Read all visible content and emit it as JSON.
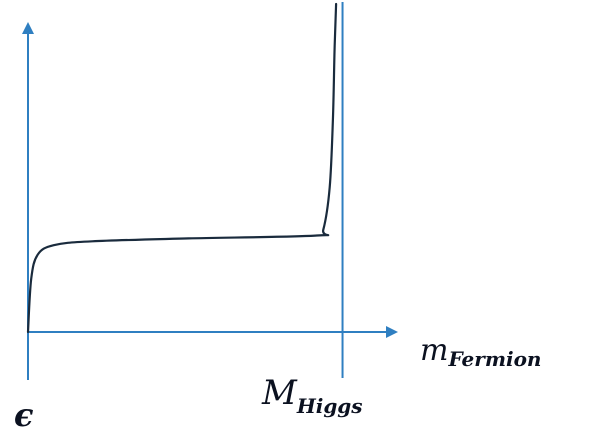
{
  "chart_data": {
    "type": "line",
    "title": "",
    "ylabel": "",
    "xlabel": {
      "main": "m",
      "sub": "Fermion"
    },
    "origin_label": "ϵ",
    "marker_label": {
      "main": "M",
      "sub": "Higgs"
    },
    "series": [
      {
        "values": [
          [
            0.0,
            0.0
          ],
          [
            0.1,
            0.55
          ],
          [
            0.3,
            0.8
          ],
          [
            0.8,
            0.9
          ],
          [
            2.0,
            0.94
          ],
          [
            5.0,
            0.97
          ],
          [
            9.0,
            1.0
          ],
          [
            9.2,
            1.06
          ],
          [
            9.4,
            1.5
          ],
          [
            9.5,
            2.2
          ],
          [
            9.55,
            2.9
          ],
          [
            9.6,
            3.4
          ]
        ]
      }
    ],
    "x_marker": 9.8,
    "xlim": [
      0,
      10.5
    ],
    "ylim": [
      0,
      3.4
    ],
    "grid": false,
    "axis_color": "#2f7fc1",
    "line_color": "#1a2b3d"
  }
}
